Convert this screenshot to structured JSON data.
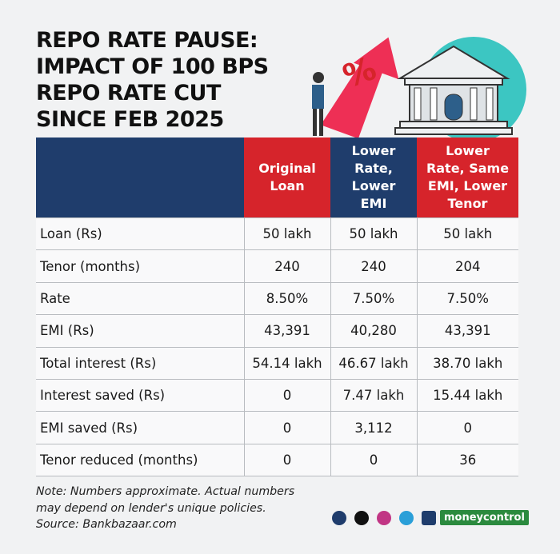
{
  "header": {
    "title": [
      "REPO RATE PAUSE:",
      "IMPACT OF 100 BPS",
      "REPO RATE CUT",
      "SINCE FEB 2025"
    ]
  },
  "table": {
    "columns": [
      "Original Loan",
      "Lower Rate, Lower EMI",
      "Lower Rate, Same EMI, Lower Tenor"
    ],
    "rows": [
      [
        "Loan (Rs)",
        "50 lakh",
        "50 lakh",
        "50 lakh"
      ],
      [
        "Tenor (months)",
        "240",
        "240",
        "204"
      ],
      [
        "Rate",
        "8.50%",
        "7.50%",
        "7.50%"
      ],
      [
        "EMI (Rs)",
        "43,391",
        "40,280",
        "43,391"
      ],
      [
        "Total interest  (Rs)",
        "54.14 lakh",
        "46.67 lakh",
        "38.70 lakh"
      ],
      [
        "Interest saved (Rs)",
        "0",
        "7.47 lakh",
        "15.44 lakh"
      ],
      [
        "EMI saved (Rs)",
        "0",
        "3,112",
        "0"
      ],
      [
        "Tenor reduced (months)",
        "0",
        "0",
        "36"
      ]
    ]
  },
  "footer": {
    "notes": [
      "Note: Numbers approximate. Actual numbers",
      "may depend on lender's unique policies.",
      "Source: Bankbazaar.com"
    ],
    "brand": "moneycontrol"
  }
}
